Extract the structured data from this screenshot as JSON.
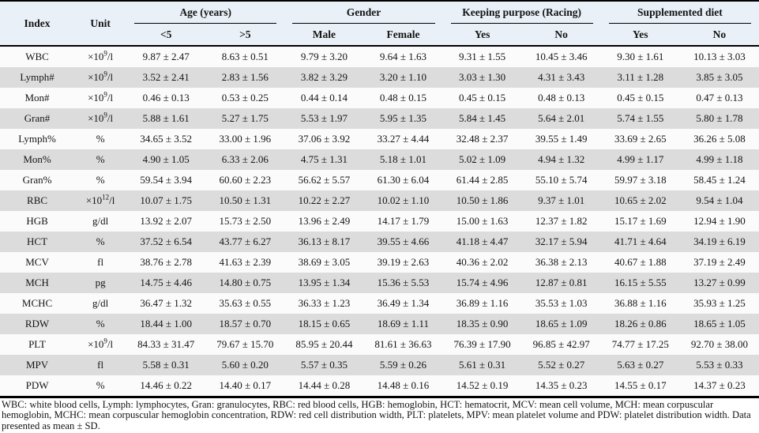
{
  "table": {
    "header": {
      "index_label": "Index",
      "unit_label": "Unit",
      "groups": [
        {
          "label": "Age (years)",
          "subs": [
            "<5",
            ">5"
          ]
        },
        {
          "label": "Gender",
          "subs": [
            "Male",
            "Female"
          ]
        },
        {
          "label": "Keeping purpose (Racing)",
          "subs": [
            "Yes",
            "No"
          ]
        },
        {
          "label": "Supplemented diet",
          "subs": [
            "Yes",
            "No"
          ]
        }
      ]
    },
    "rows": [
      {
        "index": "WBC",
        "unit": {
          "pre": "×10",
          "sup": "9",
          "post": "/l"
        },
        "values": [
          "9.87 ± 2.47",
          "8.63 ± 0.51",
          "9.79 ± 3.20",
          "9.64 ± 1.63",
          "9.31 ± 1.55",
          "10.45 ± 3.46",
          "9.30 ± 1.61",
          "10.13 ± 3.03"
        ]
      },
      {
        "index": "Lymph#",
        "unit": {
          "pre": "×10",
          "sup": "9",
          "post": "/l"
        },
        "values": [
          "3.52 ± 2.41",
          "2.83 ± 1.56",
          "3.82 ± 3.29",
          "3.20 ± 1.10",
          "3.03 ± 1.30",
          "4.31 ± 3.43",
          "3.11 ± 1.28",
          "3.85 ± 3.05"
        ]
      },
      {
        "index": "Mon#",
        "unit": {
          "pre": "×10",
          "sup": "9",
          "post": "/l"
        },
        "values": [
          "0.46 ± 0.13",
          "0.53 ± 0.25",
          "0.44 ± 0.14",
          "0.48 ± 0.15",
          "0.45 ± 0.15",
          "0.48 ± 0.13",
          "0.45 ± 0.15",
          "0.47 ± 0.13"
        ]
      },
      {
        "index": "Gran#",
        "unit": {
          "pre": "×10",
          "sup": "9",
          "post": "/l"
        },
        "values": [
          "5.88 ± 1.61",
          "5.27 ± 1.75",
          "5.53 ± 1.97",
          "5.95 ± 1.35",
          "5.84 ± 1.45",
          "5.64 ± 2.01",
          "5.74 ± 1.55",
          "5.80 ± 1.78"
        ]
      },
      {
        "index": "Lymph%",
        "unit": {
          "pre": "%"
        },
        "values": [
          "34.65 ± 3.52",
          "33.00 ± 1.96",
          "37.06 ± 3.92",
          "33.27 ± 4.44",
          "32.48 ± 2.37",
          "39.55 ± 1.49",
          "33.69 ± 2.65",
          "36.26 ± 5.08"
        ]
      },
      {
        "index": "Mon%",
        "unit": {
          "pre": "%"
        },
        "values": [
          "4.90 ± 1.05",
          "6.33 ± 2.06",
          "4.75 ± 1.31",
          "5.18 ± 1.01",
          "5.02 ± 1.09",
          "4.94 ± 1.32",
          "4.99 ± 1.17",
          "4.99 ± 1.18"
        ]
      },
      {
        "index": "Gran%",
        "unit": {
          "pre": "%"
        },
        "values": [
          "59.54 ± 3.94",
          "60.60 ± 2.23",
          "56.62 ± 5.57",
          "61.30 ± 6.04",
          "61.44 ± 2.85",
          "55.10 ± 5.74",
          "59.97 ± 3.18",
          "58.45 ± 1.24"
        ]
      },
      {
        "index": "RBC",
        "unit": {
          "pre": "×10",
          "sup": "12",
          "post": "/l"
        },
        "values": [
          "10.07 ± 1.75",
          "10.50 ± 1.31",
          "10.22 ± 2.27",
          "10.02 ± 1.10",
          "10.50 ± 1.86",
          "9.37 ± 1.01",
          "10.65 ± 2.02",
          "9.54 ± 1.04"
        ]
      },
      {
        "index": "HGB",
        "unit": {
          "pre": "g/dl"
        },
        "values": [
          "13.92 ± 2.07",
          "15.73 ± 2.50",
          "13.96 ± 2.49",
          "14.17 ± 1.79",
          "15.00 ± 1.63",
          "12.37 ± 1.82",
          "15.17 ± 1.69",
          "12.94 ± 1.90"
        ]
      },
      {
        "index": "HCT",
        "unit": {
          "pre": "%"
        },
        "values": [
          "37.52 ± 6.54",
          "43.77 ± 6.27",
          "36.13 ± 8.17",
          "39.55 ± 4.66",
          "41.18 ± 4.47",
          "32.17 ± 5.94",
          "41.71 ± 4.64",
          "34.19 ± 6.19"
        ]
      },
      {
        "index": "MCV",
        "unit": {
          "pre": "fl"
        },
        "values": [
          "38.76 ± 2.78",
          "41.63 ± 2.39",
          "38.69 ± 3.05",
          "39.19 ± 2.63",
          "40.36 ± 2.02",
          "36.38 ± 2.13",
          "40.67 ± 1.88",
          "37.19 ± 2.49"
        ]
      },
      {
        "index": "MCH",
        "unit": {
          "pre": "pg"
        },
        "values": [
          "14.75 ± 4.46",
          "14.80 ± 0.75",
          "13.95 ± 1.34",
          "15.36 ± 5.53",
          "15.74 ± 4.96",
          "12.87 ± 0.81",
          "16.15 ± 5.55",
          "13.27 ± 0.99"
        ]
      },
      {
        "index": "MCHC",
        "unit": {
          "pre": "g/dl"
        },
        "values": [
          "36.47 ± 1.32",
          "35.63 ± 0.55",
          "36.33 ± 1.23",
          "36.49 ± 1.34",
          "36.89 ± 1.16",
          "35.53 ± 1.03",
          "36.88 ± 1.16",
          "35.93 ± 1.25"
        ]
      },
      {
        "index": "RDW",
        "unit": {
          "pre": "%"
        },
        "values": [
          "18.44 ± 1.00",
          "18.57 ± 0.70",
          "18.15 ± 0.65",
          "18.69 ± 1.11",
          "18.35 ± 0.90",
          "18.65 ± 1.09",
          "18.26 ± 0.86",
          "18.65 ± 1.05"
        ]
      },
      {
        "index": "PLT",
        "unit": {
          "pre": "×10",
          "sup": "9",
          "post": "/l"
        },
        "values": [
          "84.33 ± 31.47",
          "79.67 ± 15.70",
          "85.95 ± 20.44",
          "81.61 ± 36.63",
          "76.39 ± 17.90",
          "96.85 ± 42.97",
          "74.77 ± 17.25",
          "92.70 ± 38.00"
        ]
      },
      {
        "index": "MPV",
        "unit": {
          "pre": "fl"
        },
        "values": [
          "5.58 ± 0.31",
          "5.60 ± 0.20",
          "5.57 ± 0.35",
          "5.59 ± 0.26",
          "5.61 ± 0.31",
          "5.52 ± 0.27",
          "5.63 ± 0.27",
          "5.53 ± 0.33"
        ]
      },
      {
        "index": "PDW",
        "unit": {
          "pre": "%"
        },
        "values": [
          "14.46 ± 0.22",
          "14.40 ± 0.17",
          "14.44 ± 0.28",
          "14.48 ± 0.16",
          "14.52 ± 0.19",
          "14.35 ± 0.23",
          "14.55 ± 0.17",
          "14.37 ± 0.23"
        ]
      }
    ]
  },
  "footnote": "WBC: white blood cells, Lymph: lymphocytes, Gran: granulocytes, RBC: red blood cells, HGB: hemoglobin, HCT: hematocrit, MCV: mean cell volume, MCH: mean corpuscular hemoglobin, MCHC: mean corpuscular hemoglobin concentration, RDW: red cell distribution width, PLT: platelets, MPV: mean platelet volume and PDW: platelet distribution width. Data presented as mean ± SD.",
  "colors": {
    "header_bg": "#e9f0f7",
    "stripe_bg": "#dcdcdc",
    "row_bg": "#fbfbfb",
    "rule": "#000000"
  }
}
